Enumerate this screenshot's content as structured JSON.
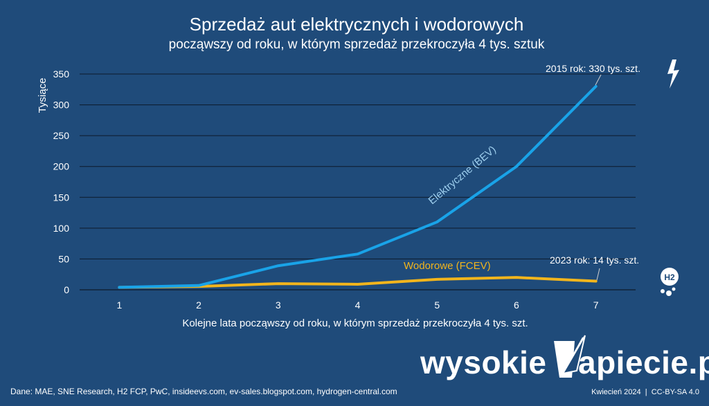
{
  "chart_data": {
    "type": "line",
    "title": "Sprzedaż aut elektrycznych i wodorowych",
    "subtitle": "począwszy od roku, w którym sprzedaż przekroczyła 4 tys. sztuk",
    "ylabel": "Tysiące",
    "xlabel": "Kolejne lata począwszy od roku, w którym sprzedaż przekroczyła 4 tys. szt.",
    "x": [
      1,
      2,
      3,
      4,
      5,
      6,
      7
    ],
    "ylim": [
      0,
      350
    ],
    "yticks": [
      0,
      50,
      100,
      150,
      200,
      250,
      300,
      350
    ],
    "grid": true,
    "series": [
      {
        "name": "Elektryczne (BEV)",
        "color": "#19a3e8",
        "values": [
          4,
          7,
          39,
          58,
          110,
          200,
          330
        ]
      },
      {
        "name": "Wodorowe (FCEV)",
        "color": "#f2b51c",
        "values": [
          4,
          5.5,
          10,
          9,
          17,
          20,
          14
        ]
      }
    ],
    "annotations": [
      {
        "text": "2015 rok: 330 tys. szt.",
        "x": 7,
        "y": 330
      },
      {
        "text": "2023 rok: 14 tys. szt.",
        "x": 7,
        "y": 14
      }
    ]
  },
  "brand": {
    "left": "wysokie",
    "right": "apiecie.pl"
  },
  "footer": {
    "sources": "Dane: MAE, SNE Research, H2 FCP, PwC, insideevs.com, ev-sales.blogspot.com, hydrogen-central.com",
    "date_license": "Kwiecień 2024  |  CC-BY-SA 4.0"
  },
  "icons": {
    "lightning": "lightning-bolt-icon",
    "hydrogen": "h2-icon",
    "hydrogen_text": "H2"
  }
}
